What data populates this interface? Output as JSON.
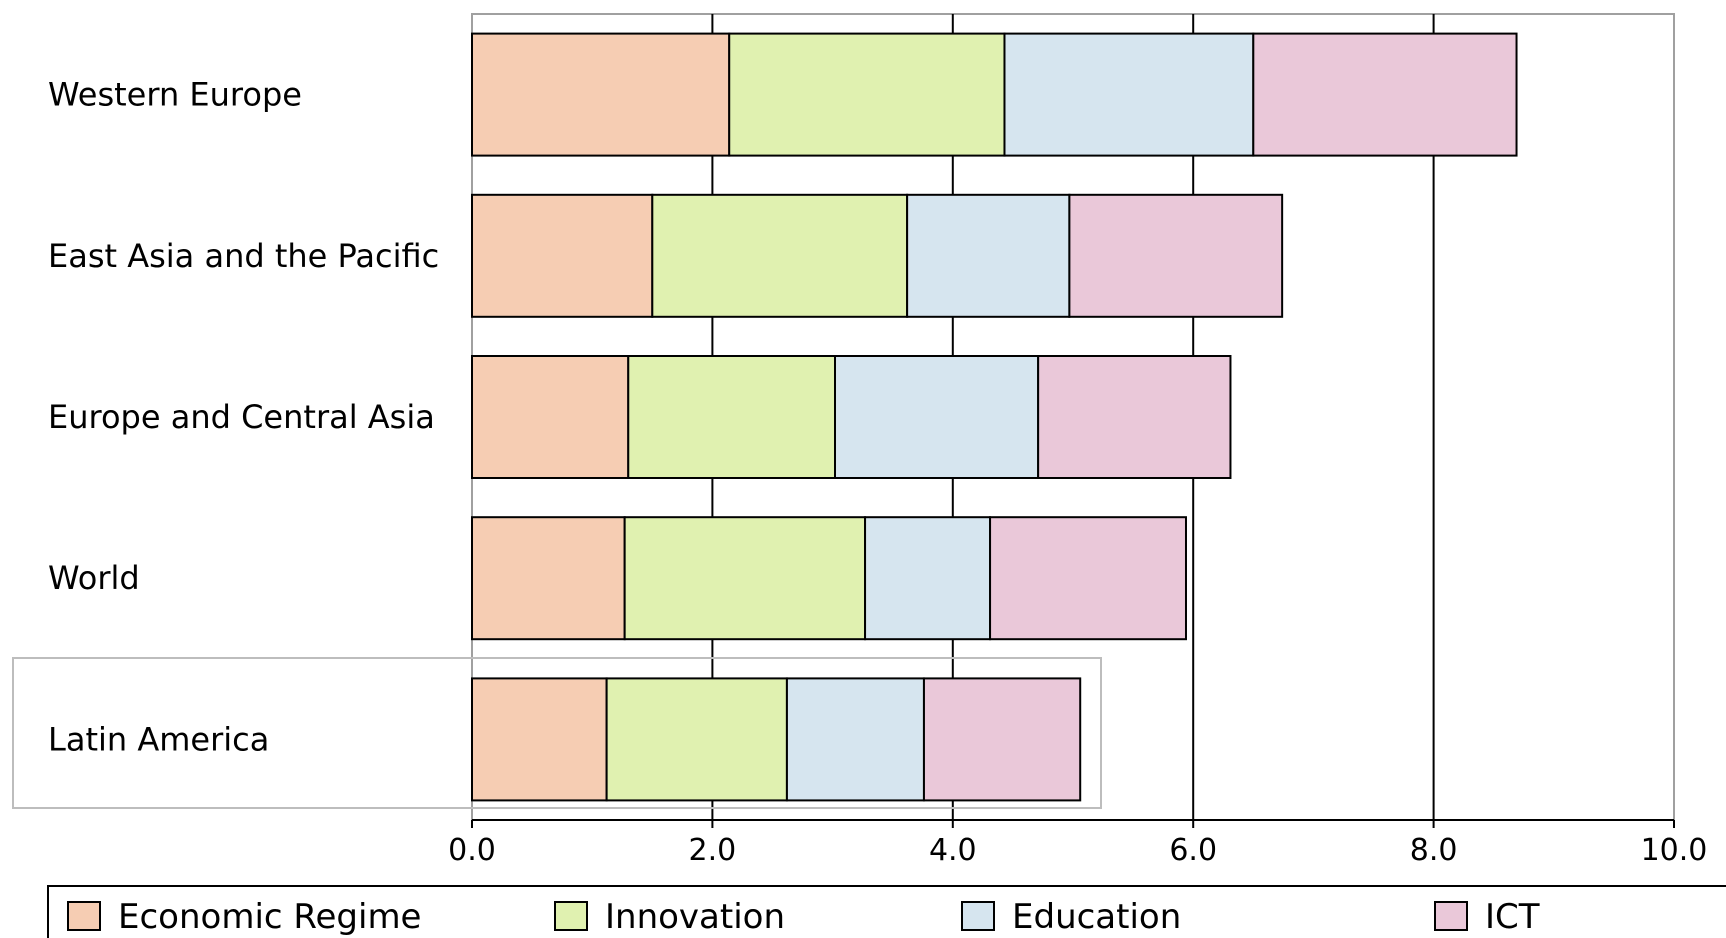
{
  "chart_data": {
    "type": "bar",
    "orientation": "horizontal",
    "stacked": true,
    "title": "",
    "xlabel": "",
    "ylabel": "",
    "categories": [
      "Western Europe",
      "East Asia and the Pacific",
      "Europe and Central Asia",
      "World",
      "Latin America"
    ],
    "series": [
      {
        "name": "Economic Regime",
        "color": "#F6CDB3",
        "values": [
          2.14,
          1.5,
          1.3,
          1.27,
          1.12
        ]
      },
      {
        "name": "Innovation",
        "color": "#E0F1B0",
        "values": [
          2.29,
          2.12,
          1.72,
          2.0,
          1.5
        ]
      },
      {
        "name": "Education",
        "color": "#D6E5EF",
        "values": [
          2.07,
          1.35,
          1.69,
          1.04,
          1.14
        ]
      },
      {
        "name": "ICT",
        "color": "#EAC8D9",
        "values": [
          2.19,
          1.77,
          1.6,
          1.63,
          1.3
        ]
      }
    ],
    "xlim": [
      0,
      10
    ],
    "ticks": [
      "0.0",
      "2.0",
      "4.0",
      "6.0",
      "8.0",
      "10.0"
    ],
    "grid": true,
    "legend_position": "bottom",
    "highlighted_category": "Latin America"
  }
}
